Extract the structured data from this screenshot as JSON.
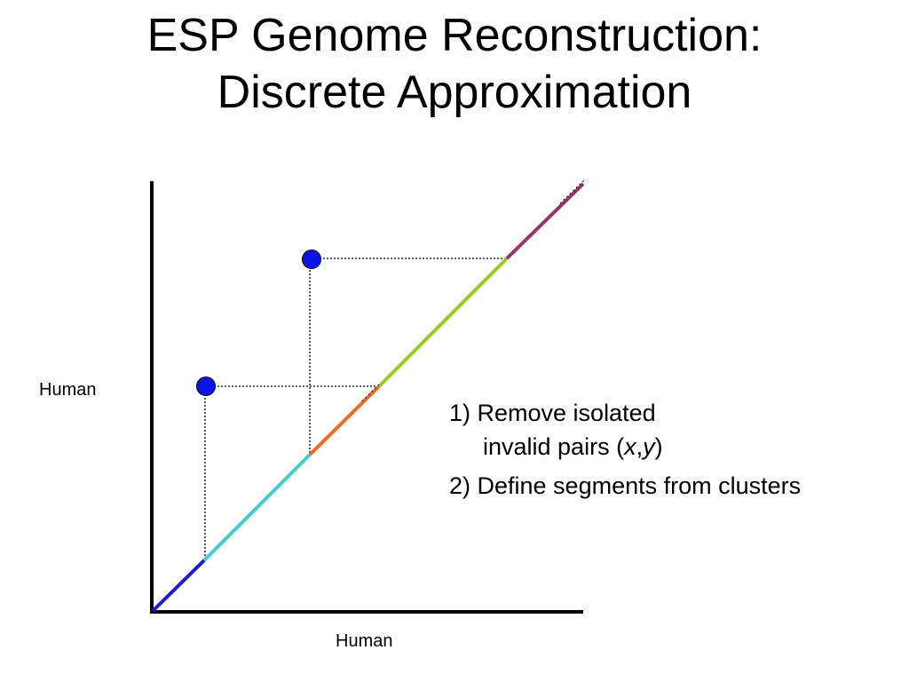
{
  "title": {
    "line1": "ESP Genome Reconstruction:",
    "line2": "Discrete Approximation"
  },
  "axes": {
    "y_label": "Human",
    "x_label": "Human"
  },
  "steps": {
    "step1_line1": "1) Remove isolated",
    "step1_line2_prefix": "invalid pairs (",
    "step1_x": "x",
    "step1_comma": ",",
    "step1_y": "y",
    "step1_suffix": ")",
    "step2": "2) Define segments from clusters"
  },
  "segment_colors": {
    "blue": "#1a1adb",
    "cyan": "#3fcfcf",
    "orange": "#f26b1d",
    "green": "#99cc1a",
    "purple": "#993366"
  },
  "point_color": "#0a14e6"
}
